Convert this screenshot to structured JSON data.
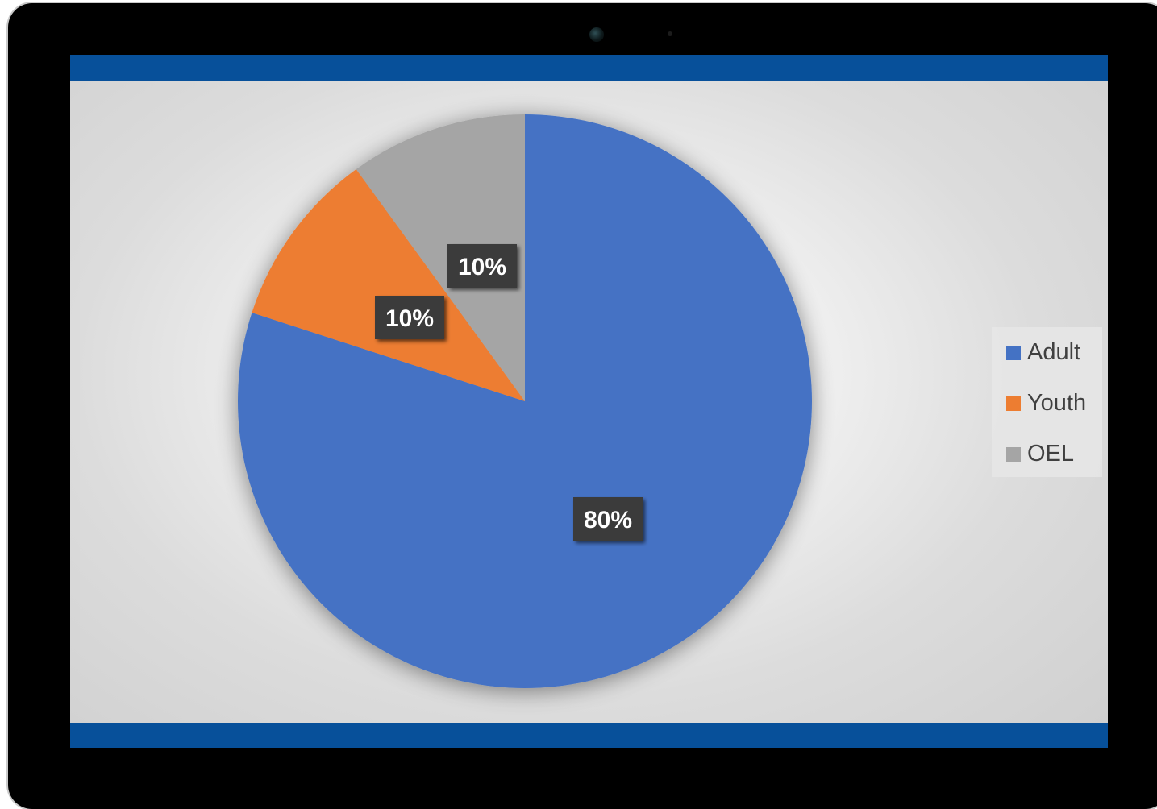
{
  "chart_data": {
    "type": "pie",
    "title": "",
    "categories": [
      "Adult",
      "Youth",
      "OEL"
    ],
    "values": [
      80,
      10,
      10
    ],
    "data_labels": [
      "80%",
      "10%",
      "10%"
    ],
    "colors": [
      "#4472c4",
      "#ed7d31",
      "#a5a5a5"
    ],
    "start_angle": "12 o'clock",
    "direction": "clockwise",
    "legend_placement": "right"
  },
  "frame": {
    "accent_color": "#07509a",
    "bezel_color": "#000000"
  }
}
